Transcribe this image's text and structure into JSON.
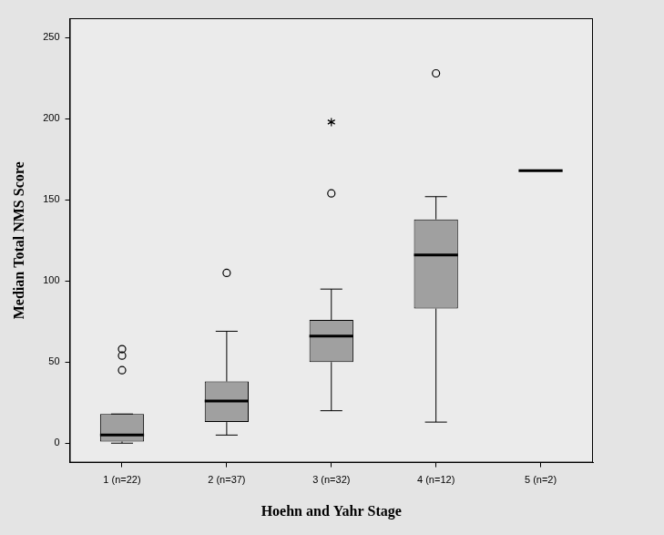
{
  "chart_data": {
    "type": "boxplot",
    "x_label": "Hoehn and Yahr Stage",
    "y_label": "Median Total NMS Score",
    "categories": [
      "1 (n=22)",
      "2 (n=37)",
      "3 (n=32)",
      "4 (n=12)",
      "5 (n=2)"
    ],
    "min": [
      0,
      5,
      20,
      13,
      168
    ],
    "q1": [
      1,
      13,
      50,
      83,
      168
    ],
    "median": [
      5,
      26,
      66,
      116,
      168
    ],
    "q3": [
      18,
      38,
      76,
      138,
      168
    ],
    "max": [
      18,
      69,
      95,
      152,
      168
    ],
    "outliers": [
      [
        45,
        54,
        58
      ],
      [
        105
      ],
      [
        154
      ],
      [
        228
      ],
      []
    ],
    "extremes": [
      [],
      [],
      [
        198
      ],
      [],
      []
    ],
    "color": "#a0a0a0",
    "ylim": [
      -12,
      262
    ],
    "yticks": [
      0,
      50,
      100,
      150,
      200,
      250
    ],
    "grid": false
  }
}
